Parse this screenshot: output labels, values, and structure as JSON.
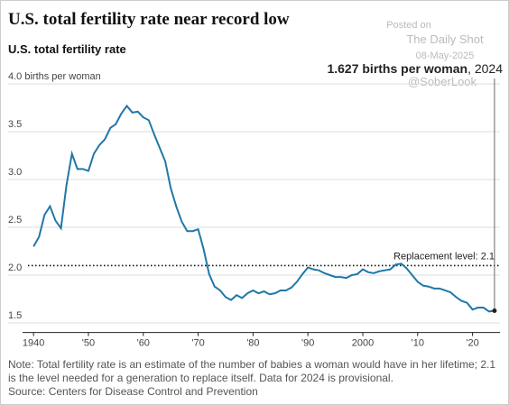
{
  "chart_data": {
    "type": "line",
    "title": "U.S. total fertility rate near record low",
    "subtitle": "U.S. total fertility rate",
    "watermark": [
      "Posted on",
      "The Daily Shot",
      "08-May-2025",
      "@SoberLook"
    ],
    "annotation": {
      "bold": "1.627 births per woman",
      "text": ", 2024"
    },
    "reference_line": {
      "value": 2.1,
      "label": "Replacement level: 2.1"
    },
    "x": [
      1940,
      1941,
      1942,
      1943,
      1944,
      1945,
      1946,
      1947,
      1948,
      1949,
      1950,
      1951,
      1952,
      1953,
      1954,
      1955,
      1956,
      1957,
      1958,
      1959,
      1960,
      1961,
      1962,
      1963,
      1964,
      1965,
      1966,
      1967,
      1968,
      1969,
      1970,
      1971,
      1972,
      1973,
      1974,
      1975,
      1976,
      1977,
      1978,
      1979,
      1980,
      1981,
      1982,
      1983,
      1984,
      1985,
      1986,
      1987,
      1988,
      1989,
      1990,
      1991,
      1992,
      1993,
      1994,
      1995,
      1996,
      1997,
      1998,
      1999,
      2000,
      2001,
      2002,
      2003,
      2004,
      2005,
      2006,
      2007,
      2008,
      2009,
      2010,
      2011,
      2012,
      2013,
      2014,
      2015,
      2016,
      2017,
      2018,
      2019,
      2020,
      2021,
      2022,
      2023,
      2024
    ],
    "values": [
      2.3,
      2.4,
      2.63,
      2.72,
      2.57,
      2.49,
      2.94,
      3.27,
      3.11,
      3.11,
      3.09,
      3.27,
      3.36,
      3.42,
      3.54,
      3.58,
      3.69,
      3.77,
      3.7,
      3.71,
      3.65,
      3.62,
      3.47,
      3.33,
      3.19,
      2.91,
      2.72,
      2.56,
      2.46,
      2.46,
      2.48,
      2.27,
      2.01,
      1.88,
      1.84,
      1.77,
      1.74,
      1.79,
      1.76,
      1.81,
      1.84,
      1.81,
      1.83,
      1.8,
      1.81,
      1.84,
      1.84,
      1.87,
      1.93,
      2.01,
      2.08,
      2.06,
      2.05,
      2.02,
      2.0,
      1.98,
      1.98,
      1.97,
      2.0,
      2.01,
      2.06,
      2.03,
      2.02,
      2.04,
      2.05,
      2.06,
      2.11,
      2.12,
      2.07,
      2.0,
      1.93,
      1.89,
      1.88,
      1.86,
      1.86,
      1.84,
      1.82,
      1.77,
      1.73,
      1.71,
      1.64,
      1.66,
      1.66,
      1.62,
      1.627
    ],
    "color": "#1f78a8",
    "xlim": [
      1938,
      2025
    ],
    "xticks": [
      1940,
      {
        "value": 1950,
        "label": "'50"
      },
      {
        "value": 1960,
        "label": "'60"
      },
      {
        "value": 1970,
        "label": "'70"
      },
      {
        "value": 1980,
        "label": "'80"
      },
      {
        "value": 1990,
        "label": "'90"
      },
      2000,
      {
        "value": 2010,
        "label": "'10"
      },
      {
        "value": 2020,
        "label": "'20"
      }
    ],
    "ylim": [
      1.4,
      4.0
    ],
    "yticks": [
      1.5,
      {
        "value": 2.0,
        "label": "2.0"
      },
      2.5,
      {
        "value": 3.0,
        "label": "3.0"
      },
      3.5,
      {
        "value": 4.0,
        "label": "4.0 births per woman"
      }
    ],
    "grid": true,
    "note": "Note: Total fertility rate is an estimate of the number of babies a woman would have in her lifetime; 2.1 is the level needed for a generation to replace itself. Data for 2024 is provisional.",
    "source": "Source: Centers for Disease Control and Prevention"
  }
}
